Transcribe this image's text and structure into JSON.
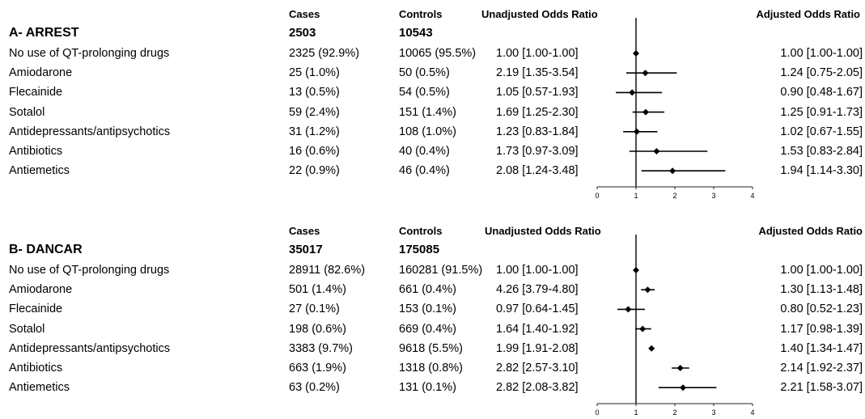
{
  "chart_data": [
    {
      "type": "forest",
      "title": "A- ARREST",
      "columns": {
        "cases": "Cases",
        "controls": "Controls",
        "unadjusted": "Unadjusted Odds Ratio",
        "adjusted": "Adjusted Odds Ratio"
      },
      "totals": {
        "cases": "2503",
        "controls": "10543"
      },
      "xlim": [
        0,
        4
      ],
      "xticks": [
        "0",
        "1",
        "2",
        "3",
        "4"
      ],
      "reference_line": 1,
      "rows": [
        {
          "label": "No use of QT-prolonging drugs",
          "cases": "2325 (92.9%)",
          "controls": "10065 (95.5%)",
          "unadjusted": "1.00 [1.00-1.00]",
          "adjusted": "1.00 [1.00-1.00]",
          "or": 1.0,
          "lo": 1.0,
          "hi": 1.0
        },
        {
          "label": "Amiodarone",
          "cases": "25 (1.0%)",
          "controls": "50 (0.5%)",
          "unadjusted": "2.19 [1.35-3.54]",
          "adjusted": "1.24 [0.75-2.05]",
          "or": 1.24,
          "lo": 0.75,
          "hi": 2.05
        },
        {
          "label": "Flecainide",
          "cases": "13 (0.5%)",
          "controls": "54 (0.5%)",
          "unadjusted": "1.05 [0.57-1.93]",
          "adjusted": "0.90 [0.48-1.67]",
          "or": 0.9,
          "lo": 0.48,
          "hi": 1.67
        },
        {
          "label": "Sotalol",
          "cases": "59 (2.4%)",
          "controls": "151 (1.4%)",
          "unadjusted": "1.69 [1.25-2.30]",
          "adjusted": "1.25 [0.91-1.73]",
          "or": 1.25,
          "lo": 0.91,
          "hi": 1.73
        },
        {
          "label": "Antidepressants/antipsychotics",
          "cases": "31 (1.2%)",
          "controls": "108 (1.0%)",
          "unadjusted": "1.23 [0.83-1.84]",
          "adjusted": "1.02 [0.67-1.55]",
          "or": 1.02,
          "lo": 0.67,
          "hi": 1.55
        },
        {
          "label": "Antibiotics",
          "cases": "16 (0.6%)",
          "controls": "40 (0.4%)",
          "unadjusted": "1.73 [0.97-3.09]",
          "adjusted": "1.53 [0.83-2.84]",
          "or": 1.53,
          "lo": 0.83,
          "hi": 2.84
        },
        {
          "label": "Antiemetics",
          "cases": "22 (0.9%)",
          "controls": "46 (0.4%)",
          "unadjusted": "2.08 [1.24-3.48]",
          "adjusted": "1.94 [1.14-3.30]",
          "or": 1.94,
          "lo": 1.14,
          "hi": 3.3
        }
      ]
    },
    {
      "type": "forest",
      "title": "B- DANCAR",
      "columns": {
        "cases": "Cases",
        "controls": "Controls",
        "unadjusted": "Unadjusted Odds Ratio",
        "adjusted": "Adjusted Odds Ratio"
      },
      "totals": {
        "cases": "35017",
        "controls": "175085"
      },
      "xlim": [
        0,
        4
      ],
      "xticks": [
        "0",
        "1",
        "2",
        "3",
        "4"
      ],
      "reference_line": 1,
      "rows": [
        {
          "label": "No use of QT-prolonging drugs",
          "cases": "28911 (82.6%)",
          "controls": "160281 (91.5%)",
          "unadjusted": "1.00 [1.00-1.00]",
          "adjusted": "1.00 [1.00-1.00]",
          "or": 1.0,
          "lo": 1.0,
          "hi": 1.0
        },
        {
          "label": "Amiodarone",
          "cases": "501 (1.4%)",
          "controls": "661 (0.4%)",
          "unadjusted": "4.26 [3.79-4.80]",
          "adjusted": "1.30 [1.13-1.48]",
          "or": 1.3,
          "lo": 1.13,
          "hi": 1.48
        },
        {
          "label": "Flecainide",
          "cases": "27 (0.1%)",
          "controls": "153 (0.1%)",
          "unadjusted": "0.97 [0.64-1.45]",
          "adjusted": "0.80 [0.52-1.23]",
          "or": 0.8,
          "lo": 0.52,
          "hi": 1.23
        },
        {
          "label": "Sotalol",
          "cases": "198 (0.6%)",
          "controls": "669 (0.4%)",
          "unadjusted": "1.64 [1.40-1.92]",
          "adjusted": "1.17 [0.98-1.39]",
          "or": 1.17,
          "lo": 0.98,
          "hi": 1.39
        },
        {
          "label": "Antidepressants/antipsychotics",
          "cases": "3383 (9.7%)",
          "controls": "9618 (5.5%)",
          "unadjusted": "1.99 [1.91-2.08]",
          "adjusted": "1.40 [1.34-1.47]",
          "or": 1.4,
          "lo": 1.34,
          "hi": 1.47
        },
        {
          "label": "Antibiotics",
          "cases": "663 (1.9%)",
          "controls": "1318 (0.8%)",
          "unadjusted": "2.82 [2.57-3.10]",
          "adjusted": "2.14 [1.92-2.37]",
          "or": 2.14,
          "lo": 1.92,
          "hi": 2.37
        },
        {
          "label": "Antiemetics",
          "cases": "63 (0.2%)",
          "controls": "131 (0.1%)",
          "unadjusted": "2.82 [2.08-3.82]",
          "adjusted": "2.21 [1.58-3.07]",
          "or": 2.21,
          "lo": 1.58,
          "hi": 3.07
        }
      ]
    }
  ]
}
